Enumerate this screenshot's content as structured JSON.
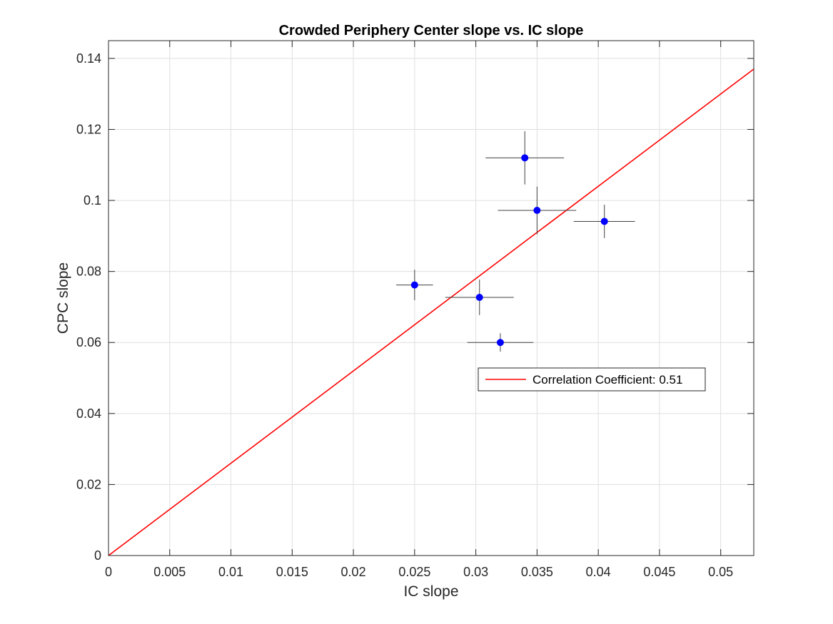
{
  "chart_data": {
    "type": "scatter",
    "title": "Crowded Periphery Center slope vs. IC slope",
    "xlabel": "IC slope",
    "ylabel": "CPC slope",
    "xlim": [
      0,
      0.0527
    ],
    "ylim": [
      0,
      0.145
    ],
    "xticks": [
      "0",
      "0.005",
      "0.01",
      "0.015",
      "0.02",
      "0.025",
      "0.03",
      "0.035",
      "0.04",
      "0.045",
      "0.05"
    ],
    "yticks": [
      "0",
      "0.02",
      "0.04",
      "0.06",
      "0.08",
      "0.1",
      "0.12",
      "0.14"
    ],
    "grid": true,
    "legend_position": "center-right",
    "series": [
      {
        "kind": "points-with-errorbars",
        "color": "#0000ff",
        "errorbar_color": "#404040",
        "points": [
          {
            "x": 0.025,
            "y": 0.0762,
            "xerr": 0.0015,
            "yerr": 0.0043
          },
          {
            "x": 0.0303,
            "y": 0.0727,
            "xerr": 0.0028,
            "yerr": 0.005
          },
          {
            "x": 0.032,
            "y": 0.06,
            "xerr": 0.0027,
            "yerr": 0.0026
          },
          {
            "x": 0.034,
            "y": 0.112,
            "xerr": 0.0032,
            "yerr": 0.0075
          },
          {
            "x": 0.035,
            "y": 0.0972,
            "xerr": 0.0032,
            "yerr": 0.0067
          },
          {
            "x": 0.0405,
            "y": 0.0941,
            "xerr": 0.0025,
            "yerr": 0.0047
          }
        ]
      },
      {
        "name": "Correlation Coefficient: 0.51",
        "kind": "line",
        "color": "#ff0000",
        "x": [
          0,
          0.0527
        ],
        "y": [
          0,
          0.137
        ]
      }
    ]
  }
}
